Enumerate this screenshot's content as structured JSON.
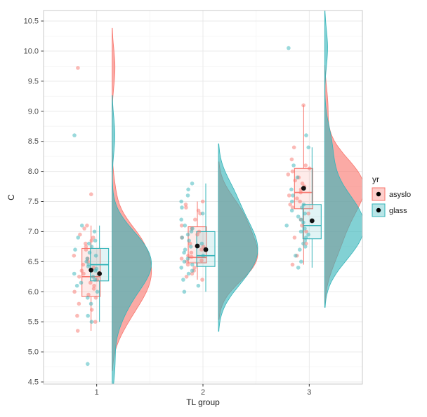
{
  "axes": {
    "x_title": "TL group",
    "y_title": "C",
    "x_tick_labels": [
      "1",
      "2",
      "3"
    ],
    "y_tick_labels": [
      "4.5",
      "5.0",
      "5.5",
      "6.0",
      "6.5",
      "7.0",
      "7.5",
      "8.0",
      "8.5",
      "9.0",
      "9.5",
      "10.0",
      "10.5"
    ]
  },
  "legend": {
    "title": "yr",
    "entries": [
      {
        "label": "asyslo",
        "color": "#F8766D"
      },
      {
        "label": "glass",
        "color": "#35B4B9"
      }
    ]
  },
  "style": {
    "panel_bg": "#FFFFFF",
    "panel_border": "#C9C9C9",
    "grid_major": "#E9E9E9",
    "grid_minor": "#F4F4F4",
    "tick_color": "#333333",
    "tick_label_color": "#4D4D4D",
    "axis_title_color": "#1A1A1A",
    "legend_text_color": "#1A1A1A",
    "mean_point_color": "#000000"
  },
  "chart_data": {
    "type": "raincloud",
    "description": "Grouped raincloud plot: jittered points + boxplot + half-violin density per TL group, colored by yr; black dots mark group means",
    "title": "",
    "xlabel": "TL group",
    "ylabel": "C",
    "ylim": [
      4.5,
      10.5
    ],
    "y_tick_step": 0.5,
    "categories": [
      "1",
      "2",
      "3"
    ],
    "legend_title": "yr",
    "legend_position": "right",
    "grid": true,
    "series": [
      {
        "name": "asyslo",
        "color": "#F8766D",
        "groups": [
          {
            "category": "1",
            "box": {
              "whisker_low": 5.35,
              "q1": 5.92,
              "median": 6.25,
              "q3": 6.72,
              "whisker_high": 7.1
            },
            "mean": 6.36,
            "points": [
              9.72,
              7.62,
              7.1,
              7.05,
              6.95,
              6.9,
              6.85,
              6.8,
              6.75,
              6.7,
              6.6,
              6.55,
              6.5,
              6.45,
              6.4,
              6.35,
              6.3,
              6.25,
              6.2,
              6.15,
              6.1,
              6.05,
              6.0,
              5.95,
              5.9,
              5.8,
              5.7,
              5.6,
              5.5,
              5.35
            ]
          },
          {
            "category": "2",
            "box": {
              "whisker_low": 6.2,
              "q1": 6.48,
              "median": 6.57,
              "q3": 7.08,
              "whisker_high": 7.5
            },
            "mean": 6.76,
            "points": [
              7.5,
              7.45,
              7.4,
              7.35,
              7.3,
              7.2,
              7.1,
              7.05,
              7.0,
              6.95,
              6.9,
              6.8,
              6.75,
              6.7,
              6.65,
              6.6,
              6.58,
              6.55,
              6.52,
              6.5,
              6.45,
              6.4,
              6.35,
              6.3,
              6.25,
              6.2
            ]
          },
          {
            "category": "3",
            "box": {
              "whisker_low": 6.45,
              "q1": 7.38,
              "median": 7.65,
              "q3": 8.05,
              "whisker_high": 9.1
            },
            "mean": 7.72,
            "points": [
              9.1,
              8.4,
              8.2,
              8.1,
              8.05,
              8.0,
              7.95,
              7.9,
              7.85,
              7.8,
              7.75,
              7.7,
              7.65,
              7.6,
              7.55,
              7.5,
              7.45,
              7.4,
              7.3,
              7.2,
              7.1,
              7.0,
              6.9,
              6.8,
              6.6,
              6.45
            ]
          }
        ]
      },
      {
        "name": "glass",
        "color": "#35B4B9",
        "groups": [
          {
            "category": "1",
            "box": {
              "whisker_low": 5.5,
              "q1": 6.18,
              "median": 6.45,
              "q3": 6.72,
              "whisker_high": 7.1
            },
            "mean": 6.3,
            "points": [
              8.6,
              7.1,
              7.0,
              6.9,
              6.85,
              6.8,
              6.75,
              6.7,
              6.65,
              6.6,
              6.55,
              6.5,
              6.45,
              6.42,
              6.38,
              6.35,
              6.3,
              6.25,
              6.2,
              6.15,
              6.1,
              6.0,
              5.9,
              5.8,
              5.6,
              5.5,
              4.8
            ]
          },
          {
            "category": "2",
            "box": {
              "whisker_low": 6.0,
              "q1": 6.42,
              "median": 6.6,
              "q3": 7.0,
              "whisker_high": 7.8
            },
            "mean": 6.7,
            "points": [
              7.8,
              7.7,
              7.6,
              7.5,
              7.4,
              7.3,
              7.2,
              7.1,
              7.05,
              7.0,
              6.95,
              6.9,
              6.85,
              6.8,
              6.75,
              6.7,
              6.65,
              6.6,
              6.55,
              6.5,
              6.45,
              6.4,
              6.35,
              6.3,
              6.2,
              6.1,
              6.0
            ]
          },
          {
            "category": "3",
            "box": {
              "whisker_low": 6.4,
              "q1": 6.88,
              "median": 7.1,
              "q3": 7.45,
              "whisker_high": 8.4
            },
            "mean": 7.18,
            "points": [
              10.05,
              8.6,
              8.4,
              8.1,
              7.9,
              7.7,
              7.6,
              7.5,
              7.45,
              7.4,
              7.35,
              7.3,
              7.25,
              7.2,
              7.15,
              7.1,
              7.05,
              7.0,
              6.95,
              6.9,
              6.85,
              6.8,
              6.75,
              6.7,
              6.6,
              6.5,
              6.4
            ]
          }
        ]
      }
    ]
  }
}
